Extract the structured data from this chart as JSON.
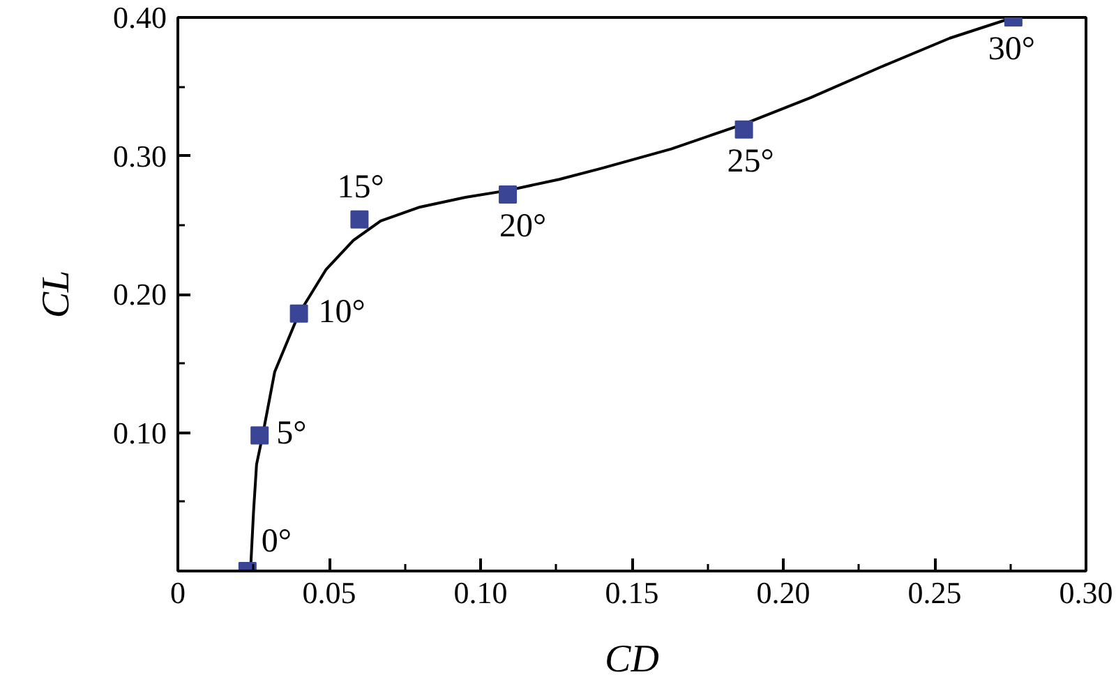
{
  "chart_data": {
    "type": "scatter",
    "xlabel": "CD",
    "ylabel": "CL",
    "xlim": [
      0,
      0.3
    ],
    "ylim": [
      0,
      0.4
    ],
    "xticks": [
      0,
      {
        "value": 0.025,
        "label": null
      },
      0.05,
      {
        "value": 0.075,
        "label": null
      },
      {
        "value": 0.1,
        "label": "0.10"
      },
      {
        "value": 0.125,
        "label": null
      },
      0.15,
      {
        "value": 0.175,
        "label": null
      },
      {
        "value": 0.2,
        "label": "0.20"
      },
      {
        "value": 0.225,
        "label": null
      },
      0.25,
      {
        "value": 0.275,
        "label": null
      },
      {
        "value": 0.3,
        "label": "0.30"
      }
    ],
    "yticks": [
      {
        "value": 0,
        "label": null
      },
      {
        "value": 0.05,
        "label": null
      },
      {
        "value": 0.1,
        "label": "0.10"
      },
      {
        "value": 0.15,
        "label": null
      },
      {
        "value": 0.2,
        "label": "0.20"
      },
      {
        "value": 0.25,
        "label": null
      },
      {
        "value": 0.3,
        "label": "0.30"
      },
      {
        "value": 0.35,
        "label": null
      },
      {
        "value": 0.4,
        "label": "0.40"
      }
    ],
    "grid": false,
    "series": [
      {
        "type": "line",
        "color": "#000000",
        "line_style": "solid",
        "marker": "none",
        "x": [
          0.024,
          0.025,
          0.026,
          0.028,
          0.032,
          0.04,
          0.049,
          0.058,
          0.067,
          0.08,
          0.095,
          0.109,
          0.126,
          0.14,
          0.163,
          0.187,
          0.209,
          0.232,
          0.255,
          0.276
        ],
        "values": [
          0,
          0.043,
          0.077,
          0.098,
          0.144,
          0.186,
          0.218,
          0.239,
          0.253,
          0.263,
          0.27,
          0.275,
          0.283,
          0.291,
          0.305,
          0.323,
          0.342,
          0.364,
          0.385,
          0.4
        ]
      },
      {
        "color": "#3b4596",
        "marker": "square",
        "x": [
          0.023,
          0.027,
          0.04,
          0.06,
          0.109,
          0.187,
          0.276
        ],
        "values": [
          0,
          0.098,
          0.186,
          0.254,
          0.272,
          0.319,
          0.4
        ]
      }
    ],
    "annotations": [
      {
        "text": "0°",
        "x": 0.023,
        "y": 0
      },
      {
        "text": "5°",
        "x": 0.027,
        "y": 0.098
      },
      {
        "text": "10°",
        "x": 0.04,
        "y": 0.186
      },
      {
        "text": "15°",
        "x": 0.06,
        "y": 0.254
      },
      {
        "text": "20°",
        "x": 0.109,
        "y": 0.272
      },
      {
        "text": "25°",
        "x": 0.187,
        "y": 0.319
      },
      {
        "text": "30°",
        "x": 0.276,
        "y": 0.4
      }
    ]
  }
}
